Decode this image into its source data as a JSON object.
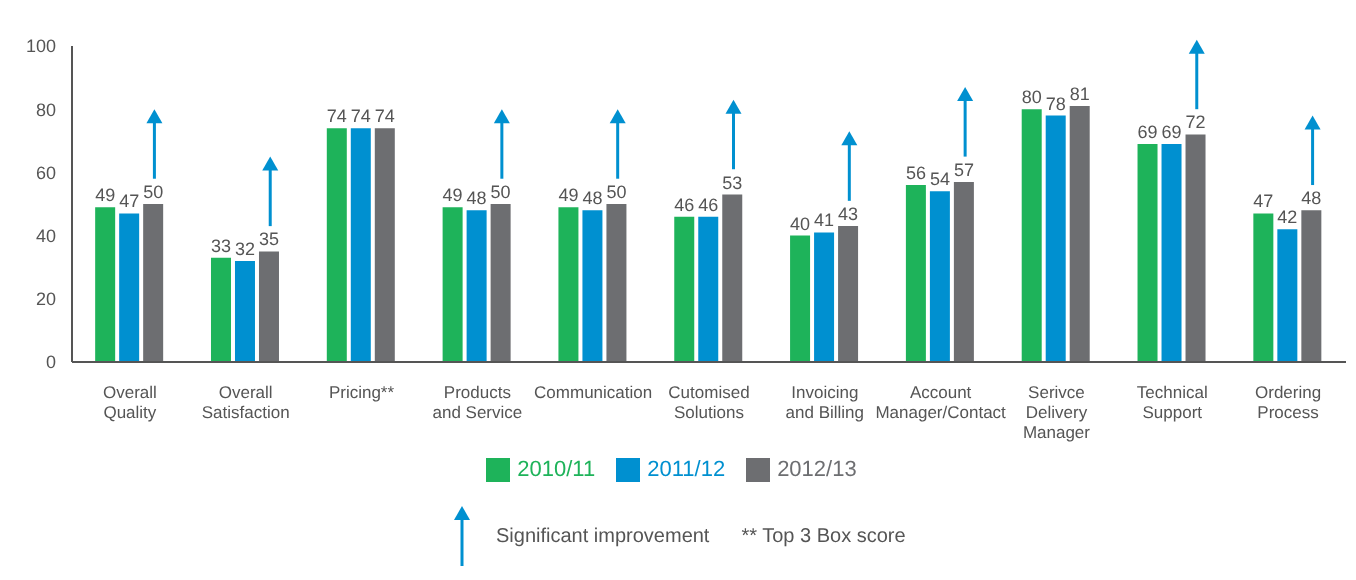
{
  "chart_data": {
    "type": "bar",
    "categories": [
      "Overall Quality",
      "Overall Satisfaction",
      "Pricing**",
      "Products and Service",
      "Communication",
      "Cutomised Solutions",
      "Invoicing and Billing",
      "Account Manager/Contact",
      "Serivce Delivery Manager",
      "Technical Support",
      "Ordering Process"
    ],
    "series": [
      {
        "name": "2010/11",
        "color": "#1eb35a",
        "values": [
          49,
          33,
          74,
          49,
          49,
          46,
          40,
          56,
          80,
          69,
          47
        ]
      },
      {
        "name": "2011/12",
        "color": "#0090d0",
        "values": [
          47,
          32,
          74,
          48,
          48,
          46,
          41,
          54,
          78,
          69,
          42
        ]
      },
      {
        "name": "2012/13",
        "color": "#6d6e71",
        "values": [
          50,
          35,
          74,
          50,
          50,
          53,
          43,
          57,
          81,
          72,
          48
        ]
      }
    ],
    "ylim": [
      0,
      100
    ],
    "yticks": [
      0,
      20,
      40,
      60,
      80,
      100
    ],
    "data_labels": true,
    "legend": "bottom",
    "grid": false,
    "annotations": [
      "Significant improvement",
      "** Top 3 Box score"
    ]
  }
}
